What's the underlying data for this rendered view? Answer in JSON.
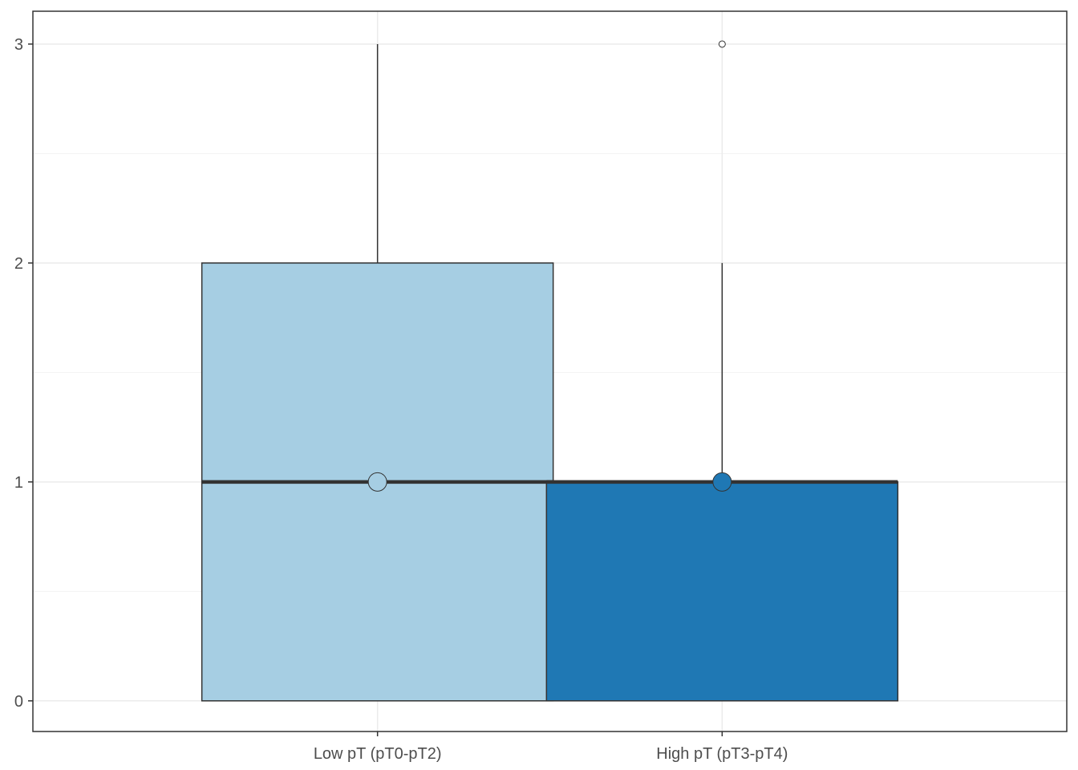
{
  "chart_data": {
    "type": "box",
    "title": "",
    "xlabel": "",
    "ylabel": "",
    "categories": [
      "Low pT (pT0-pT2)",
      "High pT (pT3-pT4)"
    ],
    "ylim": [
      -0.14,
      3.15
    ],
    "yticks": [
      0,
      1,
      2,
      3
    ],
    "grid": true,
    "legend": "none",
    "boxes": [
      {
        "category": "Low pT (pT0-pT2)",
        "q1": 0,
        "median": 1,
        "q3": 2,
        "whisker_low": 0,
        "whisker_high": 3,
        "mean": 1,
        "outliers": [],
        "fill": "#a6cee3"
      },
      {
        "category": "High pT (pT3-pT4)",
        "q1": 0,
        "median": 1,
        "q3": 1,
        "whisker_low": 0,
        "whisker_high": 2,
        "mean": 1,
        "outliers": [
          3
        ],
        "fill": "#1f78b4"
      }
    ],
    "colors": {
      "grid_major": "#ebebeb",
      "grid_minor": "#f2f2f2",
      "axis_text": "#4d4d4d",
      "line": "#333333"
    }
  }
}
